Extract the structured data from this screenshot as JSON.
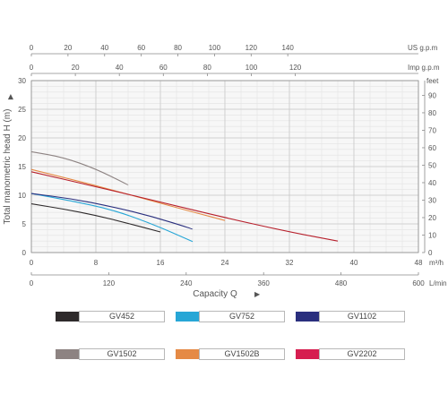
{
  "chart_data": {
    "type": "line",
    "xlabel": "Capacity  Q",
    "ylabel": "Total  manometric  head  H  (m)",
    "xlim": [
      0,
      48
    ],
    "ylim": [
      0,
      30
    ],
    "grid": true,
    "x_ticks": [
      "0",
      "8",
      "16",
      "24",
      "32",
      "40",
      "48"
    ],
    "x_unit": "m³/h",
    "y_ticks": [
      "0",
      "5",
      "10",
      "15",
      "20",
      "25",
      "30"
    ],
    "axis_lpm": {
      "unit": "L/min",
      "ticks": [
        "0",
        "120",
        "240",
        "360",
        "480",
        "600"
      ]
    },
    "axis_usgpm": {
      "unit": "US g.p.m",
      "ticks": [
        "0",
        "20",
        "40",
        "60",
        "80",
        "100",
        "120",
        "140"
      ]
    },
    "axis_impgpm": {
      "unit": "Imp g.p.m",
      "ticks": [
        "0",
        "20",
        "40",
        "60",
        "80",
        "100",
        "120"
      ]
    },
    "axis_feet": {
      "unit": "feet",
      "ticks": [
        "0",
        "10",
        "20",
        "30",
        "40",
        "50",
        "60",
        "70",
        "80",
        "90"
      ]
    },
    "series": [
      {
        "name": "GV452",
        "color": "#2e2a2b",
        "x": [
          0,
          4,
          8,
          12,
          16
        ],
        "y": [
          8.5,
          7.6,
          6.5,
          5.1,
          3.6
        ]
      },
      {
        "name": "GV752",
        "color": "#27a6d6",
        "x": [
          0,
          5,
          10,
          15,
          20
        ],
        "y": [
          10.3,
          9.0,
          7.5,
          5.0,
          1.9
        ]
      },
      {
        "name": "GV1102",
        "color": "#2a2f7e",
        "x": [
          0,
          5,
          10,
          15,
          20
        ],
        "y": [
          10.3,
          9.4,
          8.0,
          6.3,
          4.1
        ]
      },
      {
        "name": "GV1502",
        "color": "#8d8382",
        "x": [
          0,
          4,
          8,
          12
        ],
        "y": [
          17.6,
          16.6,
          14.6,
          11.8
        ]
      },
      {
        "name": "GV1502B",
        "color": "#e58a45",
        "x": [
          0,
          8,
          16,
          24
        ],
        "y": [
          14.5,
          11.7,
          8.6,
          5.6
        ]
      },
      {
        "name": "GV2202",
        "color": "#b7202c",
        "x": [
          0,
          8,
          16,
          24,
          32,
          38
        ],
        "y": [
          14.1,
          11.5,
          8.8,
          6.1,
          3.6,
          2.0
        ]
      }
    ]
  }
}
